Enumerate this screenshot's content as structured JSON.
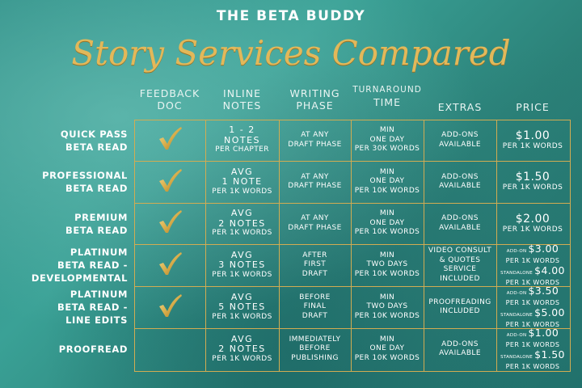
{
  "brand": "THE BETA BUDDY",
  "title": "Story Services Compared",
  "colors": {
    "gold": "#d2ac52",
    "teal_bg": "#2f8f87",
    "title_gold": "#e2b85a"
  },
  "columns": [
    {
      "l1": "FEEDBACK",
      "l2": "DOC"
    },
    {
      "l1": "INLINE",
      "l2": "NOTES"
    },
    {
      "l1": "WRITING",
      "l2": "PHASE"
    },
    {
      "l1": "TURNAROUND",
      "l2": "TIME"
    },
    {
      "l1": "EXTRAS",
      "l2": ""
    },
    {
      "l1": "PRICE",
      "l2": ""
    }
  ],
  "rows": [
    {
      "label": [
        "QUICK PASS",
        "BETA READ"
      ],
      "feedback_doc": "check-icon",
      "notes": [
        "1 - 2",
        "NOTES"
      ],
      "notes_sub": "PER CHAPTER",
      "phase": [
        "AT ANY",
        "DRAFT PHASE"
      ],
      "turnaround": [
        "MIN",
        "ONE DAY",
        "PER 30K WORDS"
      ],
      "extras": [
        "ADD-ONS",
        "AVAILABLE"
      ],
      "price": [
        {
          "tag": "",
          "amount": "$1.00"
        }
      ],
      "price_sub": "PER 1K WORDS"
    },
    {
      "label": [
        "PROFESSIONAL",
        "BETA READ"
      ],
      "feedback_doc": "check-icon",
      "notes": [
        "AVG",
        "1 NOTE"
      ],
      "notes_sub": "PER 1K WORDS",
      "phase": [
        "AT ANY",
        "DRAFT PHASE"
      ],
      "turnaround": [
        "MIN",
        "ONE DAY",
        "PER 10K WORDS"
      ],
      "extras": [
        "ADD-ONS",
        "AVAILABLE"
      ],
      "price": [
        {
          "tag": "",
          "amount": "$1.50"
        }
      ],
      "price_sub": "PER 1K WORDS"
    },
    {
      "label": [
        "PREMIUM",
        "BETA READ"
      ],
      "feedback_doc": "check-icon",
      "notes": [
        "AVG",
        "2 NOTES"
      ],
      "notes_sub": "PER 1K WORDS",
      "phase": [
        "AT ANY",
        "DRAFT PHASE"
      ],
      "turnaround": [
        "MIN",
        "ONE DAY",
        "PER 10K WORDS"
      ],
      "extras": [
        "ADD-ONS",
        "AVAILABLE"
      ],
      "price": [
        {
          "tag": "",
          "amount": "$2.00"
        }
      ],
      "price_sub": "PER 1K WORDS"
    },
    {
      "label": [
        "PLATINUM",
        "BETA READ -",
        "DEVELOPMENTAL"
      ],
      "feedback_doc": "check-icon",
      "notes": [
        "AVG",
        "3 NOTES"
      ],
      "notes_sub": "PER 1K WORDS",
      "phase": [
        "AFTER",
        "FIRST",
        "DRAFT"
      ],
      "turnaround": [
        "MIN",
        "TWO DAYS",
        "PER 10K WORDS"
      ],
      "extras": [
        "VIDEO CONSULT",
        "& QUOTES",
        "SERVICE",
        "INCLUDED"
      ],
      "price": [
        {
          "tag": "ADD-ON",
          "amount": "$3.00"
        },
        {
          "tag": "STANDALONE",
          "amount": "$4.00"
        }
      ],
      "price_sub": "PER 1K WORDS"
    },
    {
      "label": [
        "PLATINUM",
        "BETA READ -",
        "LINE EDITS"
      ],
      "feedback_doc": "check-icon",
      "notes": [
        "AVG",
        "5 NOTES"
      ],
      "notes_sub": "PER 1K WORDS",
      "phase": [
        "BEFORE",
        "FINAL",
        "DRAFT"
      ],
      "turnaround": [
        "MIN",
        "TWO DAYS",
        "PER 10K WORDS"
      ],
      "extras": [
        "PROOFREADING",
        "INCLUDED"
      ],
      "price": [
        {
          "tag": "ADD-ON",
          "amount": "$3.50"
        },
        {
          "tag": "STANDALONE",
          "amount": "$5.00"
        }
      ],
      "price_sub": "PER 1K WORDS"
    },
    {
      "label": [
        "PROOFREAD"
      ],
      "feedback_doc": "",
      "notes": [
        "AVG",
        "2 NOTES"
      ],
      "notes_sub": "PER 1K WORDS",
      "phase": [
        "IMMEDIATELY",
        "BEFORE",
        "PUBLISHING"
      ],
      "turnaround": [
        "MIN",
        "ONE DAY",
        "PER 10K WORDS"
      ],
      "extras": [
        "ADD-ONS",
        "AVAILABLE"
      ],
      "price": [
        {
          "tag": "ADD-ON",
          "amount": "$1.00"
        },
        {
          "tag": "STANDALONE",
          "amount": "$1.50"
        }
      ],
      "price_sub": "PER 1K WORDS"
    }
  ]
}
